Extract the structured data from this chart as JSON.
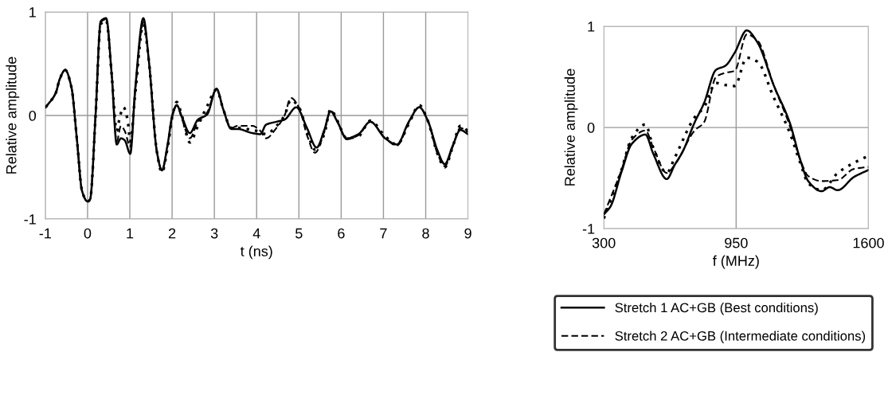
{
  "chart_data": [
    {
      "type": "line",
      "xlabel": "t (ns)",
      "ylabel": "Relative amplitude",
      "xlim": [
        -1,
        9
      ],
      "ylim": [
        -1,
        1
      ],
      "xticks": [
        {
          "value": -1,
          "label": "-1"
        },
        0,
        1,
        2,
        3,
        4,
        5,
        6,
        7,
        8,
        9
      ],
      "yticks": [
        {
          "value": -1,
          "label": "-1"
        },
        0,
        1
      ],
      "grid": true,
      "series": [
        {
          "color": "#000000",
          "line_style": "solid",
          "x": [
            -0.99,
            -0.75,
            -0.66,
            -0.53,
            -0.38,
            -0.25,
            -0.13,
            0,
            0.06,
            0.19,
            0.31,
            0.44,
            0.57,
            0.69,
            0.79,
            0.88,
            1.01,
            1.13,
            1.32,
            1.45,
            1.64,
            1.76,
            1.89,
            2.01,
            2.11,
            2.23,
            2.42,
            2.61,
            2.83,
            3.05,
            3.21,
            3.4,
            3.55,
            3.9,
            4.09,
            4.22,
            4.47,
            4.66,
            4.94,
            5.19,
            5.42,
            5.6,
            5.75,
            5.91,
            6.13,
            6.41,
            6.69,
            7.04,
            7.32,
            7.6,
            7.85,
            8.04,
            8.29,
            8.45,
            8.64,
            8.82,
            9.0
          ],
          "values": [
            0.08,
            0.22,
            0.35,
            0.44,
            0.27,
            -0.24,
            -0.73,
            -0.83,
            -0.81,
            0.01,
            0.91,
            0.94,
            0.4,
            -0.28,
            -0.22,
            -0.24,
            -0.37,
            0.27,
            0.94,
            0.53,
            -0.35,
            -0.53,
            -0.29,
            0.01,
            0.1,
            -0.01,
            -0.17,
            -0.04,
            0.01,
            0.26,
            0.06,
            -0.13,
            -0.13,
            -0.17,
            -0.18,
            -0.09,
            -0.06,
            -0.04,
            0.08,
            -0.12,
            -0.31,
            -0.14,
            0.04,
            -0.06,
            -0.22,
            -0.18,
            -0.06,
            -0.22,
            -0.28,
            -0.06,
            0.08,
            -0.04,
            -0.35,
            -0.47,
            -0.29,
            -0.14,
            -0.18
          ]
        },
        {
          "color": "#000000",
          "line_style": "dashed",
          "x": [
            -0.99,
            -0.75,
            -0.66,
            -0.53,
            -0.38,
            -0.25,
            -0.13,
            0,
            0.06,
            0.19,
            0.31,
            0.44,
            0.57,
            0.69,
            0.79,
            0.88,
            1.01,
            1.13,
            1.32,
            1.45,
            1.64,
            1.76,
            1.89,
            2.01,
            2.11,
            2.23,
            2.42,
            2.61,
            2.83,
            3.05,
            3.21,
            3.4,
            3.55,
            3.9,
            4.09,
            4.22,
            4.47,
            4.66,
            4.81,
            5.0,
            5.2,
            5.38,
            5.6,
            5.75,
            5.91,
            6.13,
            6.41,
            6.69,
            7.04,
            7.32,
            7.6,
            7.85,
            8.04,
            8.29,
            8.45,
            8.64,
            8.82,
            9.0
          ],
          "values": [
            0.08,
            0.22,
            0.35,
            0.44,
            0.27,
            -0.24,
            -0.73,
            -0.83,
            -0.81,
            0.01,
            0.9,
            0.93,
            0.4,
            -0.25,
            -0.1,
            -0.15,
            -0.3,
            0.25,
            0.9,
            0.53,
            -0.35,
            -0.53,
            -0.3,
            0.0,
            0.1,
            -0.03,
            -0.22,
            -0.06,
            0.03,
            0.25,
            0.06,
            -0.12,
            -0.1,
            -0.1,
            -0.15,
            -0.22,
            -0.12,
            0.0,
            0.17,
            0.08,
            -0.2,
            -0.36,
            -0.16,
            0.05,
            -0.06,
            -0.23,
            -0.19,
            -0.06,
            -0.22,
            -0.29,
            -0.07,
            0.08,
            -0.04,
            -0.38,
            -0.49,
            -0.3,
            -0.12,
            -0.16
          ]
        },
        {
          "color": "#000000",
          "line_style": "dotted",
          "x": [
            -0.99,
            -0.75,
            -0.66,
            -0.53,
            -0.38,
            -0.25,
            -0.13,
            0,
            0.06,
            0.19,
            0.31,
            0.44,
            0.57,
            0.69,
            0.76,
            0.85,
            0.95,
            1.01,
            1.13,
            1.32,
            1.45,
            1.64,
            1.76,
            1.89,
            2.01,
            2.11,
            2.23,
            2.42,
            2.61,
            2.83,
            3.05,
            3.21,
            3.4,
            3.55,
            3.9,
            4.09,
            4.22,
            4.47,
            4.66,
            4.81,
            5.0,
            5.2,
            5.38,
            5.6,
            5.75,
            5.91,
            6.13,
            6.41,
            6.69,
            7.04,
            7.32,
            7.6,
            7.85,
            8.04,
            8.29,
            8.45,
            8.64,
            8.82,
            9.0
          ],
          "values": [
            0.08,
            0.22,
            0.35,
            0.44,
            0.27,
            -0.24,
            -0.73,
            -0.83,
            -0.81,
            0.0,
            0.88,
            0.92,
            0.4,
            -0.15,
            -0.02,
            0.08,
            -0.05,
            -0.25,
            0.22,
            0.88,
            0.53,
            -0.35,
            -0.55,
            -0.32,
            0.0,
            0.13,
            0.0,
            -0.26,
            -0.1,
            0.09,
            0.25,
            0.06,
            -0.12,
            -0.12,
            -0.14,
            -0.16,
            -0.18,
            -0.1,
            0.0,
            0.15,
            0.08,
            -0.16,
            -0.33,
            -0.18,
            0.06,
            -0.05,
            -0.22,
            -0.2,
            -0.05,
            -0.2,
            -0.28,
            -0.08,
            0.1,
            -0.04,
            -0.38,
            -0.5,
            -0.3,
            -0.1,
            -0.15
          ]
        }
      ]
    },
    {
      "type": "line",
      "xlabel": "f (MHz)",
      "ylabel": "Relative amplitude",
      "xlim": [
        300,
        1600
      ],
      "ylim": [
        -1,
        1
      ],
      "xticks": [
        300,
        950,
        1600
      ],
      "yticks": [
        {
          "value": -1,
          "label": "-1"
        },
        0,
        1
      ],
      "grid": true,
      "legend": "bottom",
      "series": [
        {
          "name": "Stretch 1 AC+GB (Best conditions)",
          "color": "#000000",
          "line_style": "solid",
          "x": [
            300,
            333,
            385,
            438,
            504,
            543,
            609,
            648,
            687,
            746,
            792,
            851,
            897,
            943,
            1002,
            1055,
            1134,
            1213,
            1265,
            1304,
            1370,
            1409,
            1449,
            1528,
            1600
          ],
          "values": [
            -0.86,
            -0.78,
            -0.45,
            -0.16,
            -0.07,
            -0.26,
            -0.51,
            -0.37,
            -0.24,
            0.05,
            0.24,
            0.57,
            0.61,
            0.74,
            0.96,
            0.84,
            0.42,
            0.05,
            -0.32,
            -0.53,
            -0.63,
            -0.59,
            -0.62,
            -0.49,
            -0.42
          ]
        },
        {
          "name": "Stretch 2 AC+GB (Intermediate conditions)",
          "color": "#000000",
          "line_style": "dashed",
          "x": [
            300,
            385,
            438,
            504,
            543,
            609,
            648,
            746,
            792,
            851,
            897,
            943,
            1002,
            1055,
            1134,
            1213,
            1265,
            1304,
            1370,
            1449,
            1528,
            1600
          ],
          "values": [
            -0.86,
            -0.43,
            -0.12,
            -0.03,
            -0.2,
            -0.45,
            -0.37,
            -0.03,
            0.05,
            0.5,
            0.54,
            0.56,
            0.92,
            0.86,
            0.42,
            0.02,
            -0.32,
            -0.48,
            -0.53,
            -0.52,
            -0.41,
            -0.39
          ]
        },
        {
          "color": "#000000",
          "line_style": "dotted",
          "x": [
            300,
            385,
            438,
            504,
            543,
            609,
            648,
            746,
            792,
            851,
            897,
            943,
            1002,
            1055,
            1134,
            1213,
            1265,
            1304,
            1370,
            1449,
            1528,
            1600
          ],
          "values": [
            -0.9,
            -0.43,
            -0.1,
            0.03,
            -0.2,
            -0.45,
            -0.3,
            0.1,
            0.2,
            0.44,
            0.42,
            0.41,
            0.69,
            0.65,
            0.3,
            -0.05,
            -0.35,
            -0.55,
            -0.62,
            -0.45,
            -0.35,
            -0.28
          ]
        }
      ]
    }
  ]
}
